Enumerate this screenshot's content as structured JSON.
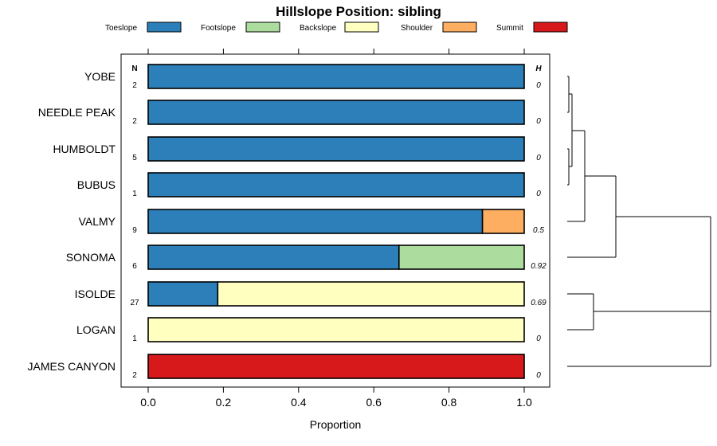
{
  "chart_data": {
    "type": "bar",
    "stacked": true,
    "orientation": "horizontal",
    "title": "Hillslope Position: sibling",
    "xlabel": "Proportion",
    "xlim": [
      0,
      1
    ],
    "xticks": [
      "0.0",
      "0.2",
      "0.4",
      "0.6",
      "0.8",
      "1.0"
    ],
    "n_header": "N",
    "h_header": "H",
    "legend_position": "top",
    "series": [
      {
        "name": "Toeslope",
        "color": "#2c7fb8"
      },
      {
        "name": "Footslope",
        "color": "#addd9e"
      },
      {
        "name": "Backslope",
        "color": "#ffffbf"
      },
      {
        "name": "Shoulder",
        "color": "#fdae61"
      },
      {
        "name": "Summit",
        "color": "#d7191c"
      }
    ],
    "rows": [
      {
        "label": "YOBE",
        "n": "2",
        "h": "0",
        "values": [
          1.0,
          0,
          0,
          0,
          0
        ]
      },
      {
        "label": "NEEDLE PEAK",
        "n": "2",
        "h": "0",
        "values": [
          1.0,
          0,
          0,
          0,
          0
        ]
      },
      {
        "label": "HUMBOLDT",
        "n": "5",
        "h": "0",
        "values": [
          1.0,
          0,
          0,
          0,
          0
        ]
      },
      {
        "label": "BUBUS",
        "n": "1",
        "h": "0",
        "values": [
          1.0,
          0,
          0,
          0,
          0
        ]
      },
      {
        "label": "VALMY",
        "n": "9",
        "h": "0.5",
        "values": [
          0.889,
          0,
          0,
          0.111,
          0
        ]
      },
      {
        "label": "SONOMA",
        "n": "6",
        "h": "0.92",
        "values": [
          0.667,
          0.333,
          0,
          0,
          0
        ]
      },
      {
        "label": "ISOLDE",
        "n": "27",
        "h": "0.69",
        "values": [
          0.185,
          0,
          0.815,
          0,
          0
        ]
      },
      {
        "label": "LOGAN",
        "n": "1",
        "h": "0",
        "values": [
          0,
          0,
          1.0,
          0,
          0
        ]
      },
      {
        "label": "JAMES CANYON",
        "n": "2",
        "h": "0",
        "values": [
          0,
          0,
          0,
          0,
          1.0
        ]
      }
    ]
  }
}
